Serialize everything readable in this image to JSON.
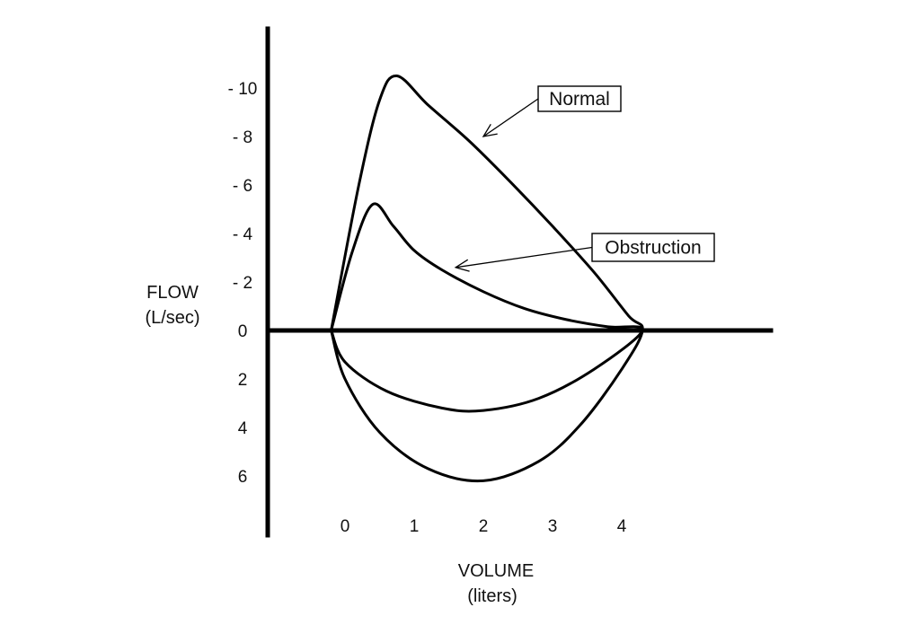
{
  "chart_data": {
    "type": "line",
    "title": "",
    "xlabel": [
      "VOLUME",
      "(liters)"
    ],
    "ylabel": [
      "FLOW",
      "(L/sec)"
    ],
    "xlim": [
      -0.2,
      4.3
    ],
    "ylim": [
      -10.5,
      6.3
    ],
    "y_inverted": true,
    "x_ticks": [
      "0",
      "1",
      "2",
      "3",
      "4"
    ],
    "x_tick_values": [
      0,
      1,
      2,
      3,
      4
    ],
    "y_ticks": [
      "- 10",
      "- 8",
      "- 6",
      "- 4",
      "- 2",
      "0",
      "2",
      "4",
      "6"
    ],
    "y_tick_values": [
      -10,
      -8,
      -6,
      -4,
      -2,
      0,
      2,
      4,
      6
    ],
    "grid": false,
    "series": [
      {
        "name": "Normal",
        "points": [
          [
            -0.2,
            0
          ],
          [
            0.2,
            -6
          ],
          [
            0.5,
            -9.5
          ],
          [
            0.75,
            -10.5
          ],
          [
            1.2,
            -9.3
          ],
          [
            1.8,
            -7.8
          ],
          [
            2.4,
            -6.1
          ],
          [
            3.0,
            -4.3
          ],
          [
            3.6,
            -2.4
          ],
          [
            4.1,
            -0.6
          ],
          [
            4.3,
            0
          ],
          [
            4.0,
            1.6
          ],
          [
            3.4,
            3.9
          ],
          [
            2.8,
            5.4
          ],
          [
            2.0,
            6.2
          ],
          [
            1.2,
            5.7
          ],
          [
            0.5,
            4.2
          ],
          [
            0.0,
            2.0
          ],
          [
            -0.2,
            0
          ]
        ]
      },
      {
        "name": "Obstruction",
        "points": [
          [
            -0.2,
            0
          ],
          [
            0.1,
            -3.2
          ],
          [
            0.4,
            -5.2
          ],
          [
            0.7,
            -4.3
          ],
          [
            1.0,
            -3.3
          ],
          [
            1.4,
            -2.5
          ],
          [
            2.0,
            -1.6
          ],
          [
            2.6,
            -0.9
          ],
          [
            3.2,
            -0.45
          ],
          [
            3.8,
            -0.15
          ],
          [
            4.3,
            0
          ],
          [
            3.6,
            1.6
          ],
          [
            2.8,
            2.8
          ],
          [
            2.0,
            3.3
          ],
          [
            1.4,
            3.2
          ],
          [
            0.6,
            2.5
          ],
          [
            0.0,
            1.3
          ],
          [
            -0.2,
            0
          ]
        ]
      }
    ],
    "annotations": [
      {
        "text": "Normal",
        "points_to": [
          2.0,
          -8.0
        ]
      },
      {
        "text": "Obstruction",
        "points_to": [
          1.6,
          -2.6
        ]
      }
    ]
  }
}
